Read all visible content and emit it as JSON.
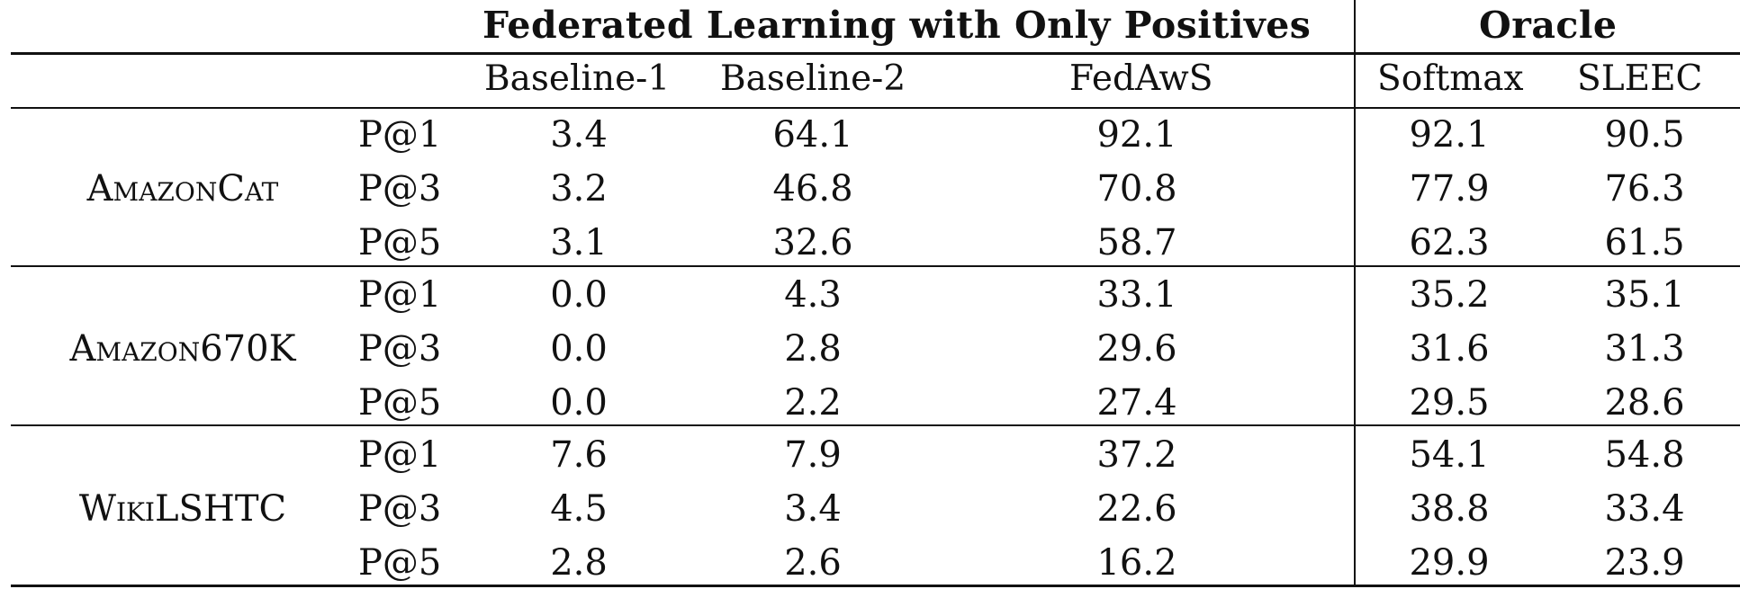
{
  "header": {
    "group_federated": "Federated Learning with Only Positives",
    "group_oracle": "Oracle"
  },
  "columns": [
    "Baseline-1",
    "Baseline-2",
    "FedAwS",
    "Softmax",
    "SLEEC"
  ],
  "datasets": [
    {
      "name": "AmazonCat",
      "rows": [
        {
          "metric": "P@1",
          "values": [
            "3.4",
            "64.1",
            "92.1",
            "92.1",
            "90.5"
          ]
        },
        {
          "metric": "P@3",
          "values": [
            "3.2",
            "46.8",
            "70.8",
            "77.9",
            "76.3"
          ]
        },
        {
          "metric": "P@5",
          "values": [
            "3.1",
            "32.6",
            "58.7",
            "62.3",
            "61.5"
          ]
        }
      ]
    },
    {
      "name": "Amazon670K",
      "rows": [
        {
          "metric": "P@1",
          "values": [
            "0.0",
            "4.3",
            "33.1",
            "35.2",
            "35.1"
          ]
        },
        {
          "metric": "P@3",
          "values": [
            "0.0",
            "2.8",
            "29.6",
            "31.6",
            "31.3"
          ]
        },
        {
          "metric": "P@5",
          "values": [
            "0.0",
            "2.2",
            "27.4",
            "29.5",
            "28.6"
          ]
        }
      ]
    },
    {
      "name": "WikiLSHTC",
      "rows": [
        {
          "metric": "P@1",
          "values": [
            "7.6",
            "7.9",
            "37.2",
            "54.1",
            "54.8"
          ]
        },
        {
          "metric": "P@3",
          "values": [
            "4.5",
            "3.4",
            "22.6",
            "38.8",
            "33.4"
          ]
        },
        {
          "metric": "P@5",
          "values": [
            "2.8",
            "2.6",
            "16.2",
            "29.9",
            "23.9"
          ]
        }
      ]
    }
  ]
}
